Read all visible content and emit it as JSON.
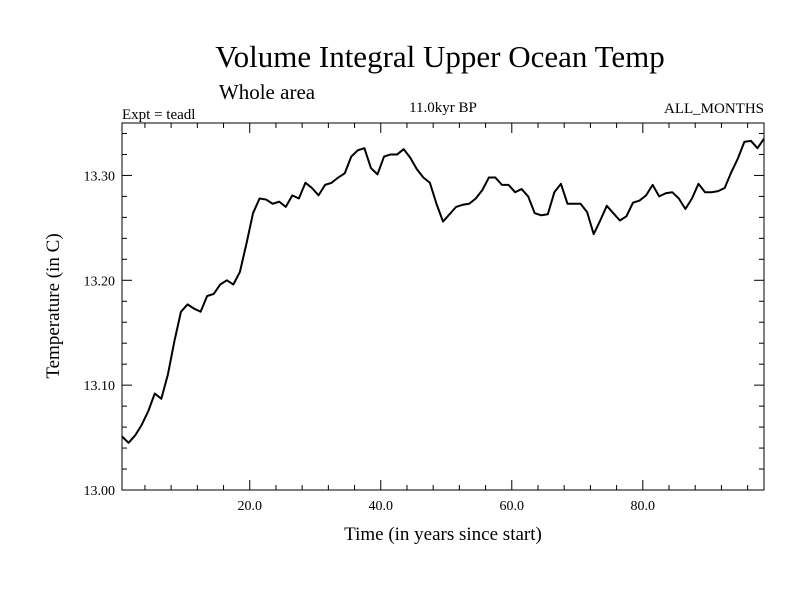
{
  "chart_data": {
    "type": "line",
    "title": "Volume Integral Upper Ocean Temp",
    "subtitle": "Whole area",
    "annotations": {
      "left": "Expt = teadl",
      "center": "11.0kyr BP",
      "right": "ALL_MONTHS"
    },
    "xlabel": "Time (in years since start)",
    "ylabel": "Temperature (in C)",
    "xlim": [
      0.5,
      98.5
    ],
    "ylim": [
      13.0,
      13.35
    ],
    "xticks": [
      20,
      40,
      60,
      80
    ],
    "xtick_labels": [
      "20.0",
      "40.0",
      "60.0",
      "80.0"
    ],
    "yticks": [
      13.0,
      13.1,
      13.2,
      13.3
    ],
    "ytick_labels": [
      "13.00",
      "13.10",
      "13.20",
      "13.30"
    ],
    "grid": false,
    "series": [
      {
        "name": "Volume Integral Upper Ocean Temp",
        "x": [
          0.5,
          1.5,
          2.5,
          3.5,
          4.5,
          5.5,
          6.5,
          7.5,
          8.5,
          9.5,
          10.5,
          11.5,
          12.5,
          13.5,
          14.5,
          15.5,
          16.5,
          17.5,
          18.5,
          19.5,
          20.5,
          21.5,
          22.5,
          23.5,
          24.5,
          25.5,
          26.5,
          27.5,
          28.5,
          29.5,
          30.5,
          31.5,
          32.5,
          33.5,
          34.5,
          35.5,
          36.5,
          37.5,
          38.5,
          39.5,
          40.5,
          41.5,
          42.5,
          43.5,
          44.5,
          45.5,
          46.5,
          47.5,
          48.5,
          49.5,
          50.5,
          51.5,
          52.5,
          53.5,
          54.5,
          55.5,
          56.5,
          57.5,
          58.5,
          59.5,
          60.5,
          61.5,
          62.5,
          63.5,
          64.5,
          65.5,
          66.5,
          67.5,
          68.5,
          69.5,
          70.5,
          71.5,
          72.5,
          73.5,
          74.5,
          75.5,
          76.5,
          77.5,
          78.5,
          79.5,
          80.5,
          81.5,
          82.5,
          83.5,
          84.5,
          85.5,
          86.5,
          87.5,
          88.5,
          89.5,
          90.5,
          91.5,
          92.5,
          93.5,
          94.5,
          95.5,
          96.5,
          97.5,
          98.5
        ],
        "values": [
          13.051,
          13.045,
          13.052,
          13.062,
          13.075,
          13.092,
          13.087,
          13.11,
          13.142,
          13.17,
          13.177,
          13.173,
          13.17,
          13.185,
          13.187,
          13.196,
          13.2,
          13.196,
          13.208,
          13.235,
          13.264,
          13.278,
          13.277,
          13.273,
          13.275,
          13.27,
          13.281,
          13.278,
          13.293,
          13.288,
          13.281,
          13.291,
          13.293,
          13.298,
          13.302,
          13.318,
          13.324,
          13.326,
          13.307,
          13.301,
          13.318,
          13.32,
          13.32,
          13.325,
          13.317,
          13.306,
          13.298,
          13.293,
          13.273,
          13.256,
          13.263,
          13.27,
          13.272,
          13.273,
          13.278,
          13.286,
          13.298,
          13.298,
          13.291,
          13.291,
          13.284,
          13.287,
          13.28,
          13.264,
          13.262,
          13.263,
          13.284,
          13.292,
          13.273,
          13.273,
          13.273,
          13.265,
          13.244,
          13.257,
          13.271,
          13.264,
          13.257,
          13.261,
          13.274,
          13.276,
          13.281,
          13.291,
          13.28,
          13.283,
          13.284,
          13.278,
          13.268,
          13.278,
          13.292,
          13.284,
          13.284,
          13.285,
          13.288,
          13.303,
          13.316,
          13.332,
          13.333,
          13.326,
          13.335
        ]
      }
    ]
  }
}
